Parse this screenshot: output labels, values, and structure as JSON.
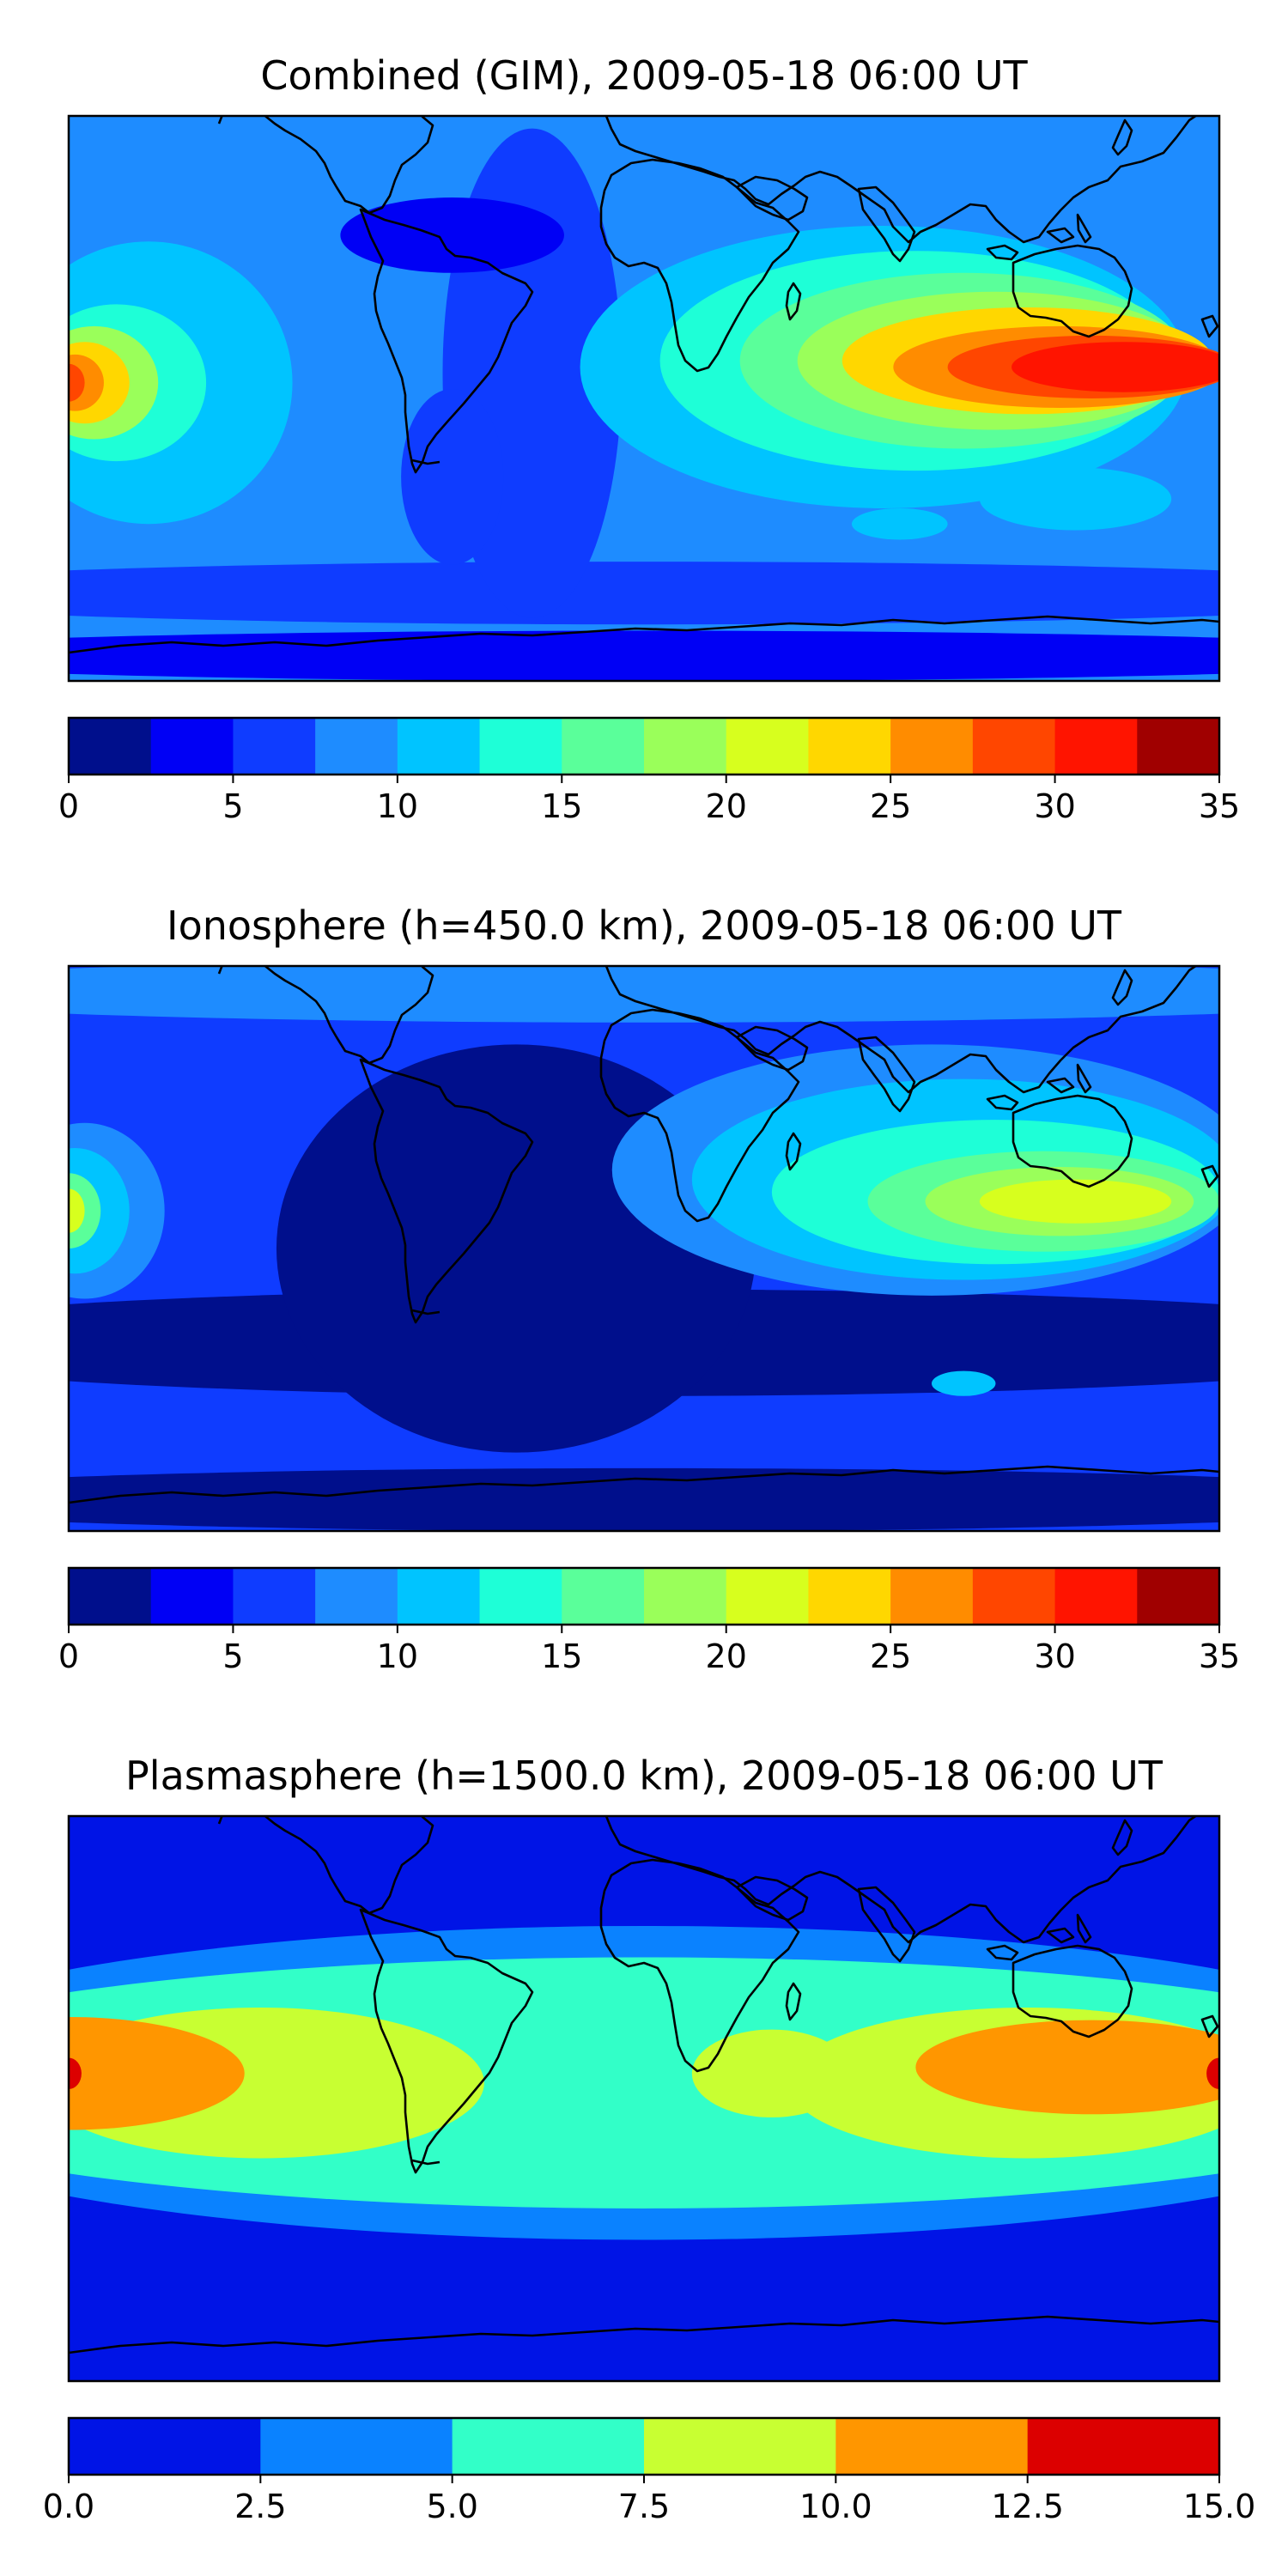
{
  "chart_data": [
    {
      "type": "heatmap",
      "title": "Combined (GIM), 2009-05-18 06:00 UT",
      "colorbar": {
        "levels": [
          0,
          2.5,
          5,
          7.5,
          10,
          12.5,
          15,
          17.5,
          20,
          22.5,
          25,
          27.5,
          30,
          32.5,
          35
        ],
        "ticks": [
          0,
          5,
          10,
          15,
          20,
          25,
          30,
          35
        ],
        "tick_labels": [
          "0",
          "5",
          "10",
          "15",
          "20",
          "25",
          "30",
          "35"
        ],
        "colors": [
          "#000f8c",
          "#0000f5",
          "#0f3cff",
          "#1e8cff",
          "#00c4ff",
          "#1effd7",
          "#5aff9a",
          "#9aff5a",
          "#d7ff1e",
          "#ffd700",
          "#ff8c00",
          "#ff4600",
          "#ff1400",
          "#a00000"
        ],
        "range": [
          0,
          35
        ]
      },
      "map_extent": {
        "lon": [
          -180,
          180
        ],
        "lat": [
          -90,
          90
        ]
      },
      "background_level": 3,
      "features": [
        {
          "region": "south-polar-band",
          "lon_c": 0,
          "lat_c": -82,
          "lon_r": 260,
          "lat_r": 8,
          "level": 1
        },
        {
          "region": "south-mid-band",
          "lon_c": 0,
          "lat_c": -62,
          "lon_r": 260,
          "lat_r": 10,
          "level": 2
        },
        {
          "region": "central-atlantic-low",
          "lon_c": -35,
          "lat_c": 8,
          "lon_r": 28,
          "lat_r": 78,
          "level": 2
        },
        {
          "region": "canada-low",
          "lon_c": -60,
          "lat_c": 52,
          "lon_r": 35,
          "lat_r": 12,
          "level": 1
        },
        {
          "region": "south-america-low",
          "lon_c": -60,
          "lat_c": -25,
          "lon_r": 16,
          "lat_r": 28,
          "level": 2
        },
        {
          "region": "east-pacific-crest",
          "lon_c": -155,
          "lat_c": 5,
          "lon_r": 45,
          "lat_r": 45,
          "level": 4
        },
        {
          "region": "east-pacific-crest",
          "lon_c": -165,
          "lat_c": 5,
          "lon_r": 28,
          "lat_r": 25,
          "level": 5
        },
        {
          "region": "east-pacific-crest",
          "lon_c": -172,
          "lat_c": 5,
          "lon_r": 20,
          "lat_r": 18,
          "level": 7
        },
        {
          "region": "east-pacific-crest",
          "lon_c": -175,
          "lat_c": 5,
          "lon_r": 14,
          "lat_r": 13,
          "level": 9
        },
        {
          "region": "east-pacific-crest",
          "lon_c": -178,
          "lat_c": 5,
          "lon_r": 9,
          "lat_r": 9,
          "level": 10
        },
        {
          "region": "east-pacific-crest",
          "lon_c": -180,
          "lat_c": 5,
          "lon_r": 5,
          "lat_r": 6,
          "level": 11
        },
        {
          "region": "afro-asian-band",
          "lon_c": 75,
          "lat_c": 10,
          "lon_r": 95,
          "lat_r": 45,
          "level": 4
        },
        {
          "region": "afro-asian-band",
          "lon_c": 85,
          "lat_c": 12,
          "lon_r": 80,
          "lat_r": 35,
          "level": 5
        },
        {
          "region": "afro-asian-band",
          "lon_c": 100,
          "lat_c": 12,
          "lon_r": 70,
          "lat_r": 28,
          "level": 6
        },
        {
          "region": "afro-asian-band",
          "lon_c": 110,
          "lat_c": 12,
          "lon_r": 62,
          "lat_r": 22,
          "level": 7
        },
        {
          "region": "asian-crest",
          "lon_c": 120,
          "lat_c": 12,
          "lon_r": 58,
          "lat_r": 17,
          "level": 9
        },
        {
          "region": "asian-crest",
          "lon_c": 130,
          "lat_c": 10,
          "lon_r": 52,
          "lat_r": 13,
          "level": 10
        },
        {
          "region": "asian-crest",
          "lon_c": 140,
          "lat_c": 10,
          "lon_r": 45,
          "lat_r": 10,
          "level": 11
        },
        {
          "region": "asian-crest",
          "lon_c": 150,
          "lat_c": 10,
          "lon_r": 35,
          "lat_r": 8,
          "level": 12
        },
        {
          "region": "australia-patch",
          "lon_c": 135,
          "lat_c": -32,
          "lon_r": 30,
          "lat_r": 10,
          "level": 4
        },
        {
          "region": "south-indian-patch",
          "lon_c": 80,
          "lat_c": -40,
          "lon_r": 15,
          "lat_r": 5,
          "level": 4
        }
      ]
    },
    {
      "type": "heatmap",
      "title": "Ionosphere  (h=450.0 km), 2009-05-18 06:00 UT",
      "colorbar": {
        "levels": [
          0,
          2.5,
          5,
          7.5,
          10,
          12.5,
          15,
          17.5,
          20,
          22.5,
          25,
          27.5,
          30,
          32.5,
          35
        ],
        "ticks": [
          0,
          5,
          10,
          15,
          20,
          25,
          30,
          35
        ],
        "tick_labels": [
          "0",
          "5",
          "10",
          "15",
          "20",
          "25",
          "30",
          "35"
        ],
        "colors": [
          "#000f8c",
          "#0000f5",
          "#0f3cff",
          "#1e8cff",
          "#00c4ff",
          "#1effd7",
          "#5aff9a",
          "#9aff5a",
          "#d7ff1e",
          "#ffd700",
          "#ff8c00",
          "#ff4600",
          "#ff1400",
          "#a00000"
        ],
        "range": [
          0,
          35
        ]
      },
      "map_extent": {
        "lon": [
          -180,
          180
        ],
        "lat": [
          -90,
          90
        ]
      },
      "background_level": 2,
      "features": [
        {
          "region": "dark-low-band",
          "lon_c": 0,
          "lat_c": -30,
          "lon_r": 260,
          "lat_r": 17,
          "level": 0
        },
        {
          "region": "south-polar-band",
          "lon_c": 0,
          "lat_c": -80,
          "lon_r": 260,
          "lat_r": 10,
          "level": 0
        },
        {
          "region": "atlantic-dark-low",
          "lon_c": -40,
          "lat_c": 0,
          "lon_r": 75,
          "lat_r": 65,
          "level": 0
        },
        {
          "region": "north-polar-cap",
          "lon_c": 0,
          "lat_c": 82,
          "lon_r": 260,
          "lat_r": 10,
          "level": 3
        },
        {
          "region": "east-pacific-crest",
          "lon_c": -175,
          "lat_c": 12,
          "lon_r": 25,
          "lat_r": 28,
          "level": 3
        },
        {
          "region": "east-pacific-crest",
          "lon_c": -178,
          "lat_c": 12,
          "lon_r": 17,
          "lat_r": 20,
          "level": 4
        },
        {
          "region": "east-pacific-crest",
          "lon_c": -180,
          "lat_c": 12,
          "lon_r": 10,
          "lat_r": 12,
          "level": 6
        },
        {
          "region": "east-pacific-crest",
          "lon_c": -180,
          "lat_c": 12,
          "lon_r": 5,
          "lat_r": 7,
          "level": 8
        },
        {
          "region": "asian-band",
          "lon_c": 90,
          "lat_c": 25,
          "lon_r": 100,
          "lat_r": 40,
          "level": 3
        },
        {
          "region": "asian-band",
          "lon_c": 100,
          "lat_c": 22,
          "lon_r": 85,
          "lat_r": 32,
          "level": 4
        },
        {
          "region": "asian-band",
          "lon_c": 110,
          "lat_c": 18,
          "lon_r": 70,
          "lat_r": 23,
          "level": 5
        },
        {
          "region": "asian-crest",
          "lon_c": 125,
          "lat_c": 15,
          "lon_r": 55,
          "lat_r": 16,
          "level": 6
        },
        {
          "region": "asian-crest",
          "lon_c": 130,
          "lat_c": 15,
          "lon_r": 42,
          "lat_r": 11,
          "level": 7
        },
        {
          "region": "asian-crest",
          "lon_c": 135,
          "lat_c": 15,
          "lon_r": 30,
          "lat_r": 7,
          "level": 8
        },
        {
          "region": "south-indian-patch",
          "lon_c": 100,
          "lat_c": -43,
          "lon_r": 10,
          "lat_r": 4,
          "level": 4
        }
      ]
    },
    {
      "type": "heatmap",
      "title": "Plasmasphere (h=1500.0 km), 2009-05-18 06:00 UT",
      "colorbar": {
        "levels": [
          0,
          2.5,
          5,
          7.5,
          10,
          12.5,
          15
        ],
        "ticks": [
          0,
          2.5,
          5,
          7.5,
          10,
          12.5,
          15
        ],
        "tick_labels": [
          "0.0",
          "2.5",
          "5.0",
          "7.5",
          "10.0",
          "12.5",
          "15.0"
        ],
        "colors": [
          "#0014e6",
          "#0a82ff",
          "#32ffc8",
          "#c8ff32",
          "#ff9600",
          "#dc0000"
        ],
        "range": [
          0,
          15
        ]
      },
      "map_extent": {
        "lon": [
          -180,
          180
        ],
        "lat": [
          -90,
          90
        ]
      },
      "background_level": 0,
      "features": [
        {
          "region": "equatorial-band",
          "lon_c": 0,
          "lat_c": 5,
          "lon_r": 260,
          "lat_r": 50,
          "level": 1
        },
        {
          "region": "equatorial-band",
          "lon_c": 0,
          "lat_c": 5,
          "lon_r": 260,
          "lat_r": 40,
          "level": 2
        },
        {
          "region": "pacific-yellow",
          "lon_c": -120,
          "lat_c": 5,
          "lon_r": 70,
          "lat_r": 24,
          "level": 3
        },
        {
          "region": "africa-yellow",
          "lon_c": 40,
          "lat_c": 8,
          "lon_r": 25,
          "lat_r": 14,
          "level": 3
        },
        {
          "region": "asia-yellow",
          "lon_c": 120,
          "lat_c": 5,
          "lon_r": 75,
          "lat_r": 24,
          "level": 3
        },
        {
          "region": "pacific-orange",
          "lon_c": -180,
          "lat_c": 8,
          "lon_r": 55,
          "lat_r": 18,
          "level": 4
        },
        {
          "region": "asia-orange",
          "lon_c": 140,
          "lat_c": 10,
          "lon_r": 55,
          "lat_r": 15,
          "level": 4
        },
        {
          "region": "dateline-max-west",
          "lon_c": -180,
          "lat_c": 8,
          "lon_r": 4,
          "lat_r": 5,
          "level": 5
        },
        {
          "region": "dateline-max-east",
          "lon_c": 180,
          "lat_c": 8,
          "lon_r": 4,
          "lat_r": 5,
          "level": 5
        }
      ]
    }
  ]
}
